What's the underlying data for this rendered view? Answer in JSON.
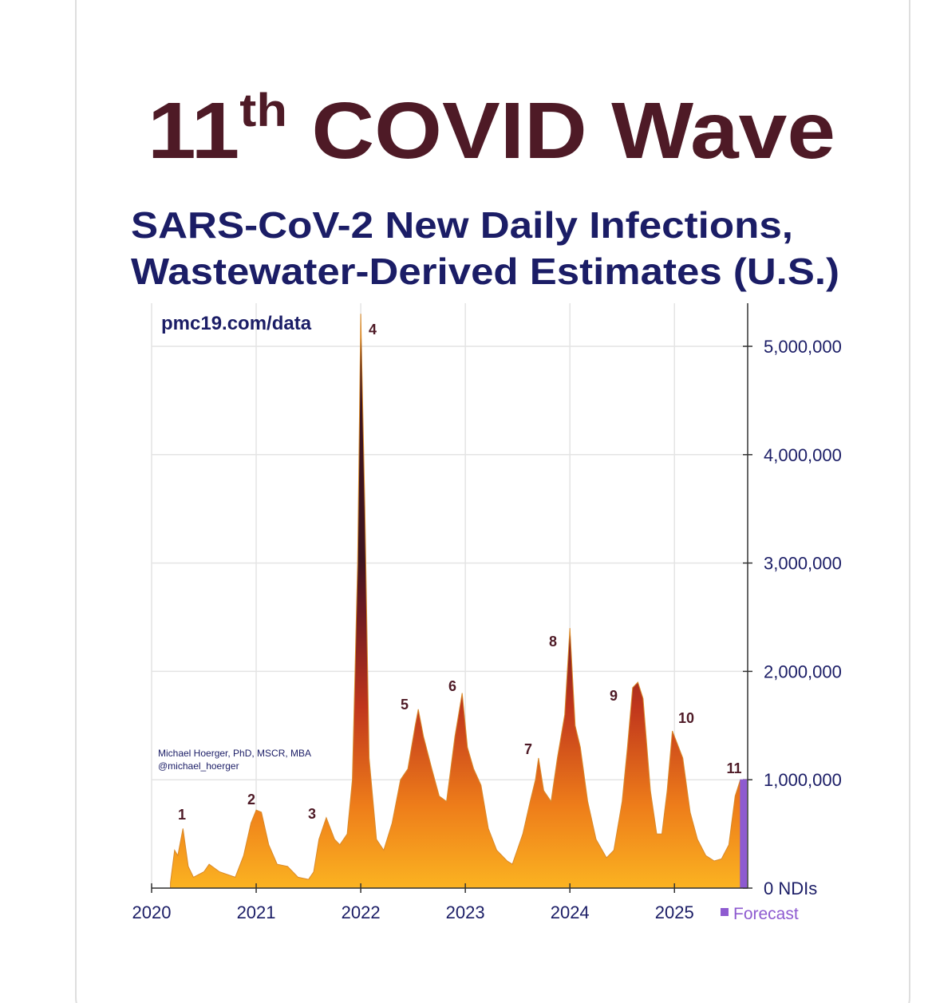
{
  "chart_data": {
    "type": "area",
    "title_number": "11",
    "title_suffix": "th",
    "title_text": "COVID Wave",
    "subtitle": [
      "SARS-CoV-2 New Daily Infections,",
      "Wastewater-Derived Estimates (U.S.)"
    ],
    "source": "pmc19.com/data",
    "credit": [
      "Michael Hoerger, PhD, MSCR, MBA",
      "@michael_hoerger"
    ],
    "annotations": [
      "1",
      "2",
      "3",
      "4",
      "5",
      "6",
      "7",
      "8",
      "9",
      "10",
      "11"
    ],
    "xlim": [
      2020,
      2025.7
    ],
    "xticks": [
      2020,
      2021,
      2022,
      2023,
      2024,
      2025
    ],
    "ylim": [
      0,
      5400000
    ],
    "yticks": [
      {
        "value": 0,
        "label": "0 NDIs"
      },
      {
        "value": 1000000,
        "label": "1,000,000"
      },
      {
        "value": 2000000,
        "label": "2,000,000"
      },
      {
        "value": 3000000,
        "label": "3,000,000"
      },
      {
        "value": 4000000,
        "label": "4,000,000"
      },
      {
        "value": 5000000,
        "label": "5,000,000"
      }
    ],
    "grid": true,
    "series": [
      {
        "color": "gradient",
        "x": [
          2020.18,
          2020.22,
          2020.25,
          2020.3,
          2020.35,
          2020.4,
          2020.5,
          2020.55,
          2020.65,
          2020.8,
          2020.88,
          2020.95,
          2021.0,
          2021.05,
          2021.12,
          2021.2,
          2021.3,
          2021.4,
          2021.5,
          2021.55,
          2021.6,
          2021.67,
          2021.75,
          2021.8,
          2021.87,
          2021.92,
          2021.97,
          2022.0,
          2022.04,
          2022.08,
          2022.15,
          2022.22,
          2022.3,
          2022.38,
          2022.45,
          2022.52,
          2022.55,
          2022.6,
          2022.68,
          2022.75,
          2022.82,
          2022.9,
          2022.97,
          2023.02,
          2023.08,
          2023.15,
          2023.22,
          2023.3,
          2023.4,
          2023.45,
          2023.55,
          2023.62,
          2023.67,
          2023.7,
          2023.75,
          2023.82,
          2023.88,
          2023.95,
          2024.0,
          2024.05,
          2024.1,
          2024.17,
          2024.25,
          2024.35,
          2024.42,
          2024.5,
          2024.55,
          2024.6,
          2024.65,
          2024.7,
          2024.77,
          2024.83,
          2024.88,
          2024.93,
          2024.98,
          2025.02,
          2025.08,
          2025.15,
          2025.22,
          2025.3,
          2025.38,
          2025.45,
          2025.52,
          2025.58,
          2025.63
        ],
        "values": [
          50000,
          350000,
          300000,
          550000,
          200000,
          100000,
          150000,
          220000,
          150000,
          100000,
          300000,
          600000,
          720000,
          700000,
          400000,
          220000,
          200000,
          100000,
          80000,
          150000,
          450000,
          650000,
          450000,
          400000,
          500000,
          1000000,
          3000000,
          5300000,
          3500000,
          1200000,
          450000,
          350000,
          600000,
          1000000,
          1100000,
          1500000,
          1650000,
          1400000,
          1100000,
          850000,
          800000,
          1400000,
          1800000,
          1300000,
          1100000,
          950000,
          550000,
          350000,
          250000,
          220000,
          500000,
          800000,
          1000000,
          1200000,
          900000,
          800000,
          1200000,
          1600000,
          2400000,
          1500000,
          1300000,
          800000,
          450000,
          280000,
          350000,
          800000,
          1300000,
          1850000,
          1900000,
          1750000,
          900000,
          500000,
          500000,
          900000,
          1450000,
          1350000,
          1200000,
          700000,
          450000,
          300000,
          250000,
          270000,
          400000,
          850000,
          1000000
        ]
      },
      {
        "name": "Forecast",
        "color": "#8e5bd0",
        "x": [
          2025.63,
          2025.69
        ],
        "values": [
          1000000,
          1000000
        ]
      }
    ]
  }
}
